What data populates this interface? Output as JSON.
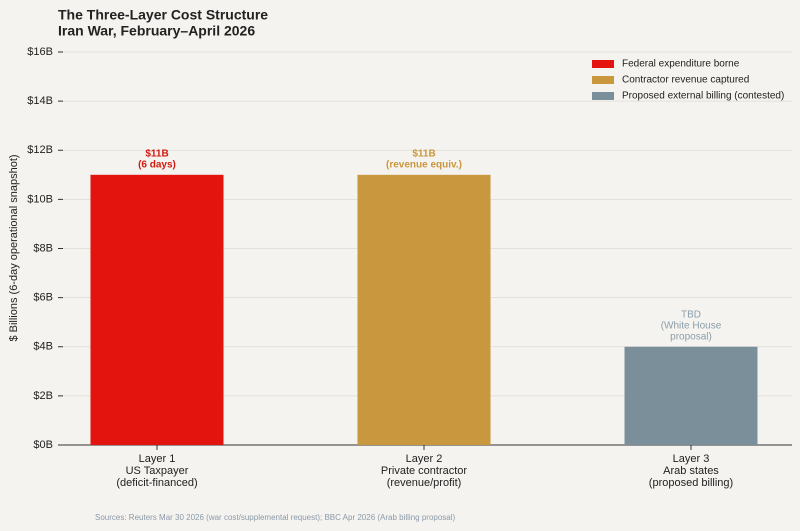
{
  "chart_data": {
    "type": "bar",
    "title": "The Three-Layer Cost Structure",
    "subtitle": "Iran War, February–April 2026",
    "ylabel": "$ Billions (6-day operational snapshot)",
    "categories": [
      [
        "Layer 1",
        "US Taxpayer",
        "(deficit-financed)"
      ],
      [
        "Layer 2",
        "Private contractor",
        "(revenue/profit)"
      ],
      [
        "Layer 3",
        "Arab states",
        "(proposed billing)"
      ]
    ],
    "values": [
      11,
      11,
      4
    ],
    "colors": [
      "#e3140e",
      "#c9973d",
      "#7a8f99"
    ],
    "annotations": [
      [
        "$11B",
        "(6 days)"
      ],
      [
        "$11B",
        "(revenue equiv.)"
      ],
      [
        "TBD",
        "(White House",
        "proposal)"
      ]
    ],
    "legend": [
      {
        "name": "Federal expenditure borne",
        "color": "#e3140e"
      },
      {
        "name": "Contractor revenue captured",
        "color": "#c9973d"
      },
      {
        "name": "Proposed external billing (contested)",
        "color": "#7a8f99"
      }
    ],
    "legend_position": "upper right",
    "ylim": [
      0,
      16
    ],
    "yticks": [
      {
        "value": 0,
        "label": "$0B"
      },
      {
        "value": 2,
        "label": "$2B"
      },
      {
        "value": 4,
        "label": "$4B"
      },
      {
        "value": 6,
        "label": "$6B"
      },
      {
        "value": 8,
        "label": "$8B"
      },
      {
        "value": 10,
        "label": "$10B"
      },
      {
        "value": 12,
        "label": "$12B"
      },
      {
        "value": 14,
        "label": "$14B"
      },
      {
        "value": 16,
        "label": "$16B"
      }
    ],
    "grid": true,
    "source": "Sources: Reuters Mar 30 2026 (war cost/supplemental request); BBC Apr 2026 (Arab billing proposal)"
  }
}
